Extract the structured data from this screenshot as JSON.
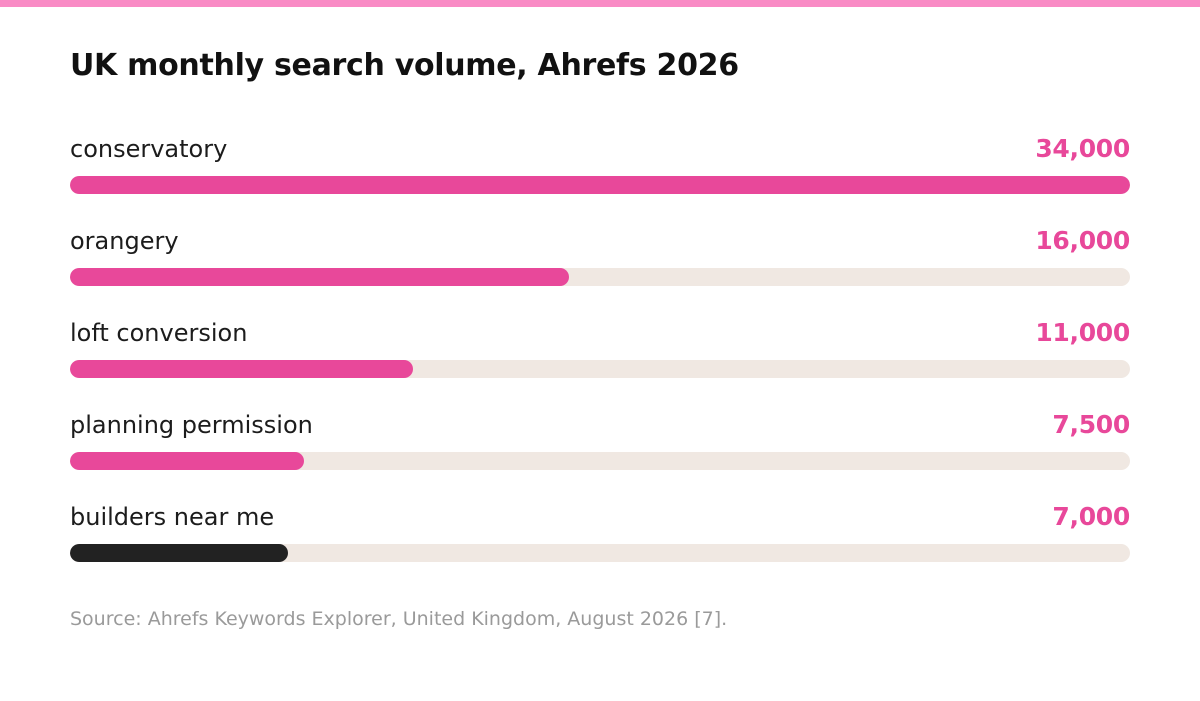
{
  "chart_data": {
    "type": "bar",
    "orientation": "horizontal",
    "title": "UK monthly search volume, Ahrefs 2026",
    "categories": [
      "conservatory",
      "orangery",
      "loft conversion",
      "planning permission",
      "builders near me"
    ],
    "values": [
      34000,
      16000,
      11000,
      7500,
      7000
    ],
    "value_labels": [
      "34,000",
      "16,000",
      "11,000",
      "7,500",
      "7,000"
    ],
    "xlim": [
      0,
      34000
    ],
    "highlight_index": 4,
    "grid": false,
    "legend": "none",
    "source": "Source: Ahrefs Keywords Explorer, United Kingdom, August 2026 [7]."
  },
  "colors": {
    "accent": "#e8489a",
    "highlight_bar": "#222222",
    "track": "#f0e8e2",
    "top_stripe": "#f98bc5"
  }
}
